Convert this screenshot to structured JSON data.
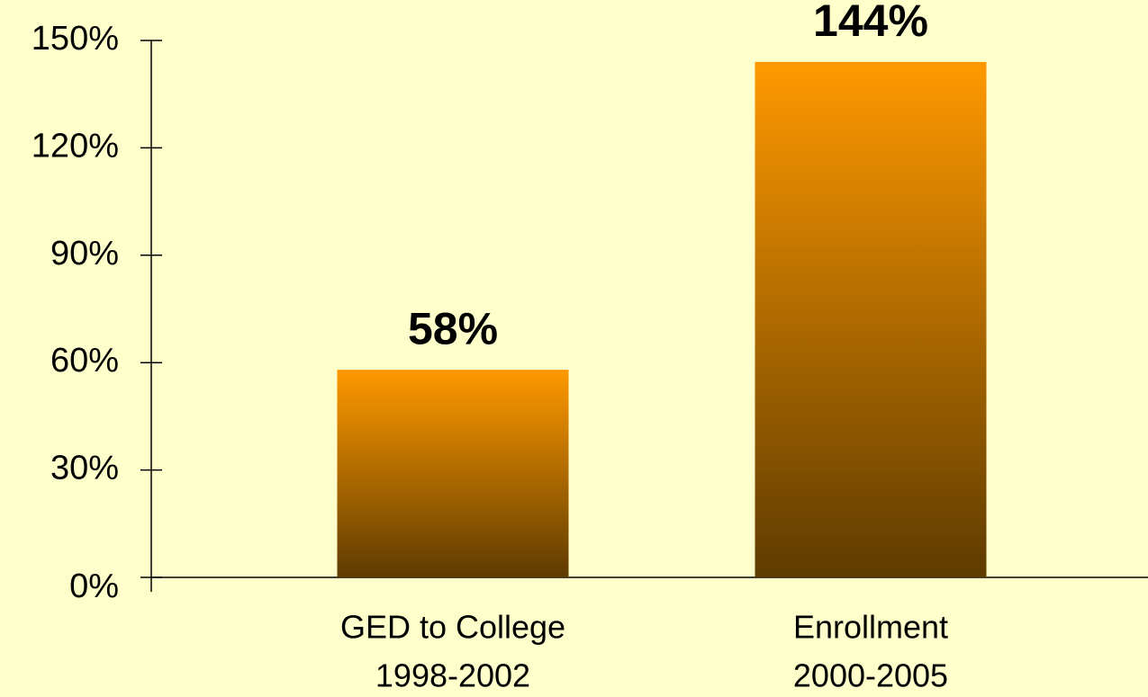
{
  "chart_data": {
    "type": "bar",
    "categories": [
      [
        "GED to College",
        "1998-2002"
      ],
      [
        "Enrollment",
        "2000-2005"
      ]
    ],
    "values": [
      58,
      144
    ],
    "value_labels": [
      "58%",
      "144%"
    ],
    "gradient": [
      "#ff9900",
      "#5e3b00"
    ],
    "ylim": [
      0,
      150
    ],
    "yticks": [
      {
        "value": 0,
        "label": "0%"
      },
      {
        "value": 30,
        "label": "30%"
      },
      {
        "value": 60,
        "label": "60%"
      },
      {
        "value": 90,
        "label": "90%"
      },
      {
        "value": 120,
        "label": "120%"
      },
      {
        "value": 150,
        "label": "150%"
      }
    ]
  }
}
